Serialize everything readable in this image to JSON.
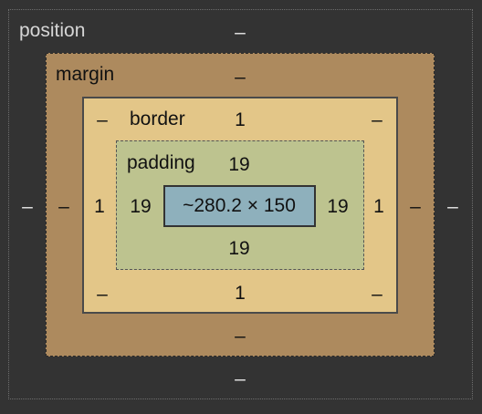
{
  "position": {
    "label": "position",
    "top": "–",
    "right": "–",
    "bottom": "–",
    "left": "–"
  },
  "margin": {
    "label": "margin",
    "top": "–",
    "right": "–",
    "bottom": "–",
    "left": "–"
  },
  "border": {
    "label": "border",
    "top": "1",
    "right": "1",
    "bottom": "1",
    "left": "1",
    "corner_top_left": "–",
    "corner_top_right": "–",
    "corner_bottom_left": "–",
    "corner_bottom_right": "–"
  },
  "padding": {
    "label": "padding",
    "top": "19",
    "right": "19",
    "bottom": "19",
    "left": "19"
  },
  "content": {
    "size": "~280.2 × 150"
  },
  "colors": {
    "background": "#333333",
    "margin": "#ad8a5e",
    "border": "#e3c688",
    "padding": "#bdc38f",
    "content": "#8eb0bc"
  }
}
